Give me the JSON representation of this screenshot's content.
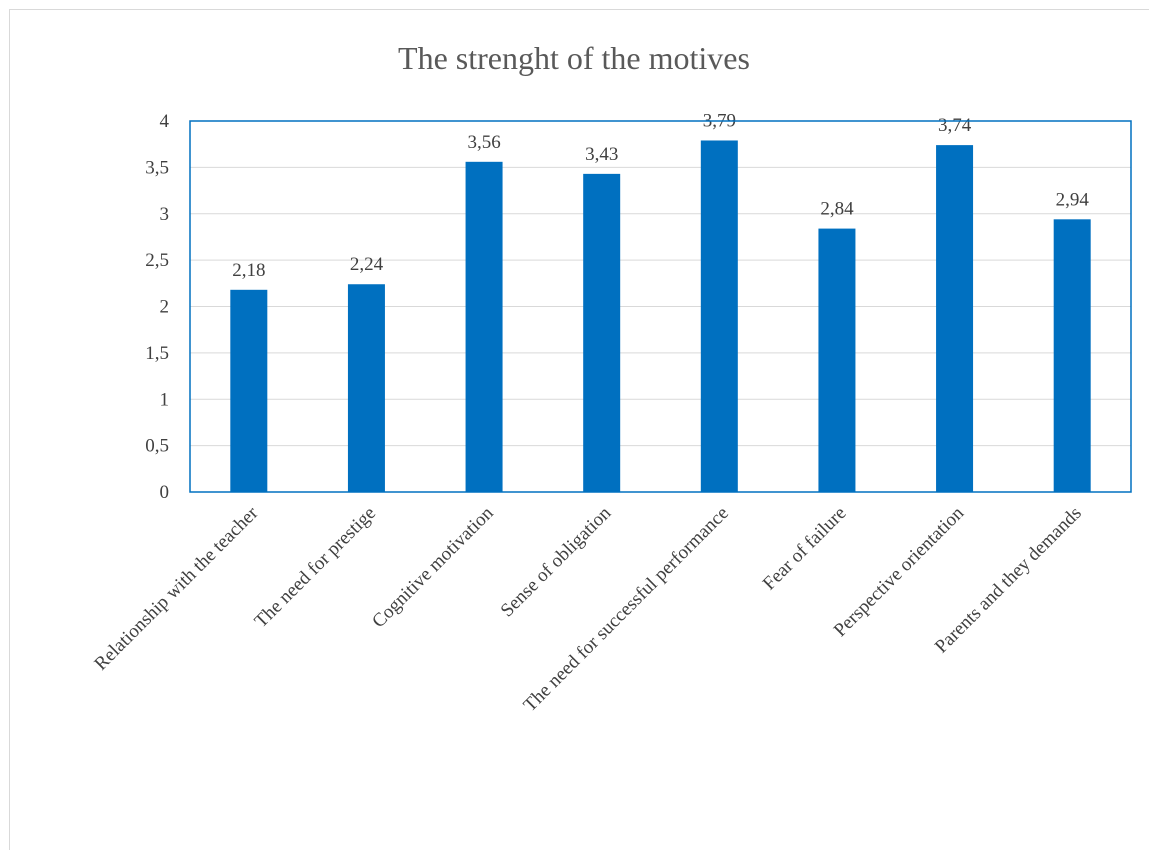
{
  "chart_data": {
    "type": "bar",
    "title": "The strenght of the motives",
    "categories": [
      "Relationship with the teacher",
      "The need for prestige",
      "Cognitive motivation",
      "Sense of obligation",
      "The need for successful performance",
      "Fear of failure",
      "Perspective orientation",
      "Parents and they demands"
    ],
    "values": [
      2.18,
      2.24,
      3.56,
      3.43,
      3.79,
      2.84,
      3.74,
      2.94
    ],
    "data_labels": [
      "2,18",
      "2,24",
      "3,56",
      "3,43",
      "3,79",
      "2,84",
      "3,74",
      "2,94"
    ],
    "y_ticks": [
      0,
      0.5,
      1,
      1.5,
      2,
      2.5,
      3,
      3.5,
      4
    ],
    "y_tick_labels": [
      "0",
      "0,5",
      "1",
      "1,5",
      "2",
      "2,5",
      "3",
      "3,5",
      "4"
    ],
    "ylim": [
      0,
      4
    ],
    "xlabel": "",
    "ylabel": "",
    "grid": true,
    "legend": "none",
    "colors": {
      "bar": "#0070c0",
      "plot_border": "#0070c0",
      "gridline": "#d9d9d9",
      "text": "#404040",
      "title": "#595959"
    }
  }
}
